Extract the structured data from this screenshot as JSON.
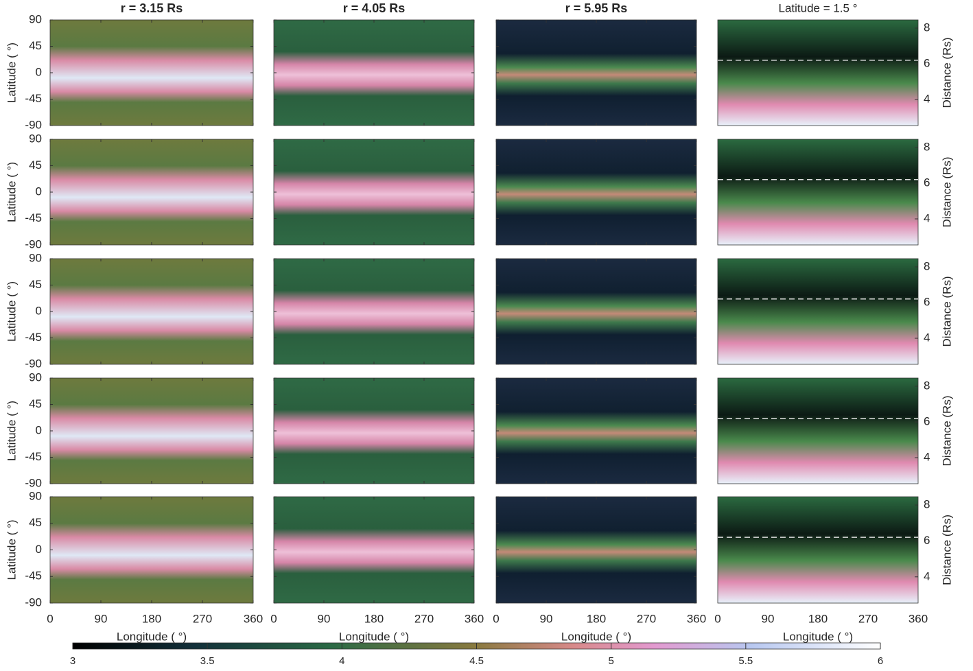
{
  "chart_data": {
    "type": "heatmap",
    "column_titles": [
      "r = 3.15 Rs",
      "r = 4.05 Rs",
      "r = 5.95 Rs",
      "Latitude = 1.5    °"
    ],
    "xlabel": "Longitude (   °)",
    "ylabel": "Latitude (   °)",
    "y2label": "Distance (Rs)",
    "xlim": [
      0,
      360
    ],
    "xticks": [
      0,
      90,
      180,
      270,
      360
    ],
    "ylim": [
      -90,
      90
    ],
    "yticks": [
      -90,
      -45,
      0,
      45,
      90
    ],
    "y2lim": [
      2.54,
      8.46
    ],
    "y2ticks": [
      4,
      6,
      8
    ],
    "reference_line": 6.2,
    "colorbar": {
      "lim": [
        3,
        6
      ],
      "ticks": [
        3,
        3.5,
        4,
        4.5,
        5,
        5.5,
        6
      ]
    }
  }
}
